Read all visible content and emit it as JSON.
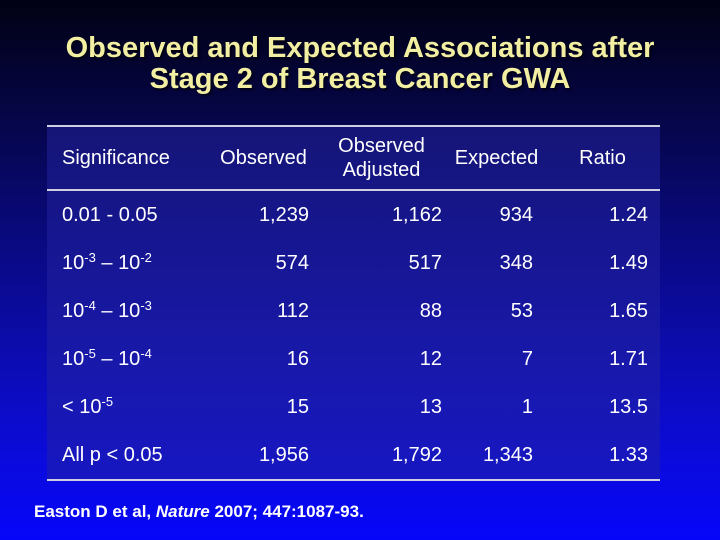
{
  "slide": {
    "title": {
      "line1": "Observed and Expected Associations after",
      "line2": "Stage 2 of Breast Cancer GWA"
    },
    "colors": {
      "background_stops": [
        "#010113",
        "#05053f",
        "#09097a",
        "#0c0cae",
        "#0b0bdc",
        "#0505fa"
      ],
      "title_text": "#f2efa2",
      "body_text": "#ffffff",
      "rule": "#cfcfe0",
      "table_fill": "rgba(35,35,162,0.5)"
    }
  },
  "table": {
    "headers": [
      "Significance",
      "Observed",
      "Observed Adjusted",
      "Expected",
      "Ratio"
    ],
    "rows": [
      {
        "significance": [
          {
            "t": "0.01 - 0.05"
          }
        ],
        "observed": "1,239",
        "observed_adjusted": "1,162",
        "expected": "934",
        "ratio": "1.24"
      },
      {
        "significance": [
          {
            "t": "10"
          },
          {
            "t": "-3",
            "sup": true
          },
          {
            "t": " – "
          },
          {
            "t": "10"
          },
          {
            "t": "-2",
            "sup": true
          }
        ],
        "observed": "574",
        "observed_adjusted": "517",
        "expected": "348",
        "ratio": "1.49"
      },
      {
        "significance": [
          {
            "t": "10"
          },
          {
            "t": "-4",
            "sup": true
          },
          {
            "t": " – "
          },
          {
            "t": "10"
          },
          {
            "t": "-3",
            "sup": true
          }
        ],
        "observed": "112",
        "observed_adjusted": "88",
        "expected": "53",
        "ratio": "1.65"
      },
      {
        "significance": [
          {
            "t": "10"
          },
          {
            "t": "-5",
            "sup": true
          },
          {
            "t": " – "
          },
          {
            "t": "10"
          },
          {
            "t": "-4",
            "sup": true
          }
        ],
        "observed": "16",
        "observed_adjusted": "12",
        "expected": "7",
        "ratio": "1.71"
      },
      {
        "significance": [
          {
            "t": "< 10"
          },
          {
            "t": "-5",
            "sup": true
          }
        ],
        "observed": "15",
        "observed_adjusted": "13",
        "expected": "1",
        "ratio": "13.5"
      },
      {
        "significance": [
          {
            "t": "All p < 0.05"
          }
        ],
        "observed": "1,956",
        "observed_adjusted": "1,792",
        "expected": "1,343",
        "ratio": "1.33"
      }
    ]
  },
  "citation": {
    "segments": [
      {
        "t": "Easton D et al, "
      },
      {
        "t": "Nature",
        "italic": true
      },
      {
        "t": " 2007; 447:1087-93."
      }
    ]
  }
}
